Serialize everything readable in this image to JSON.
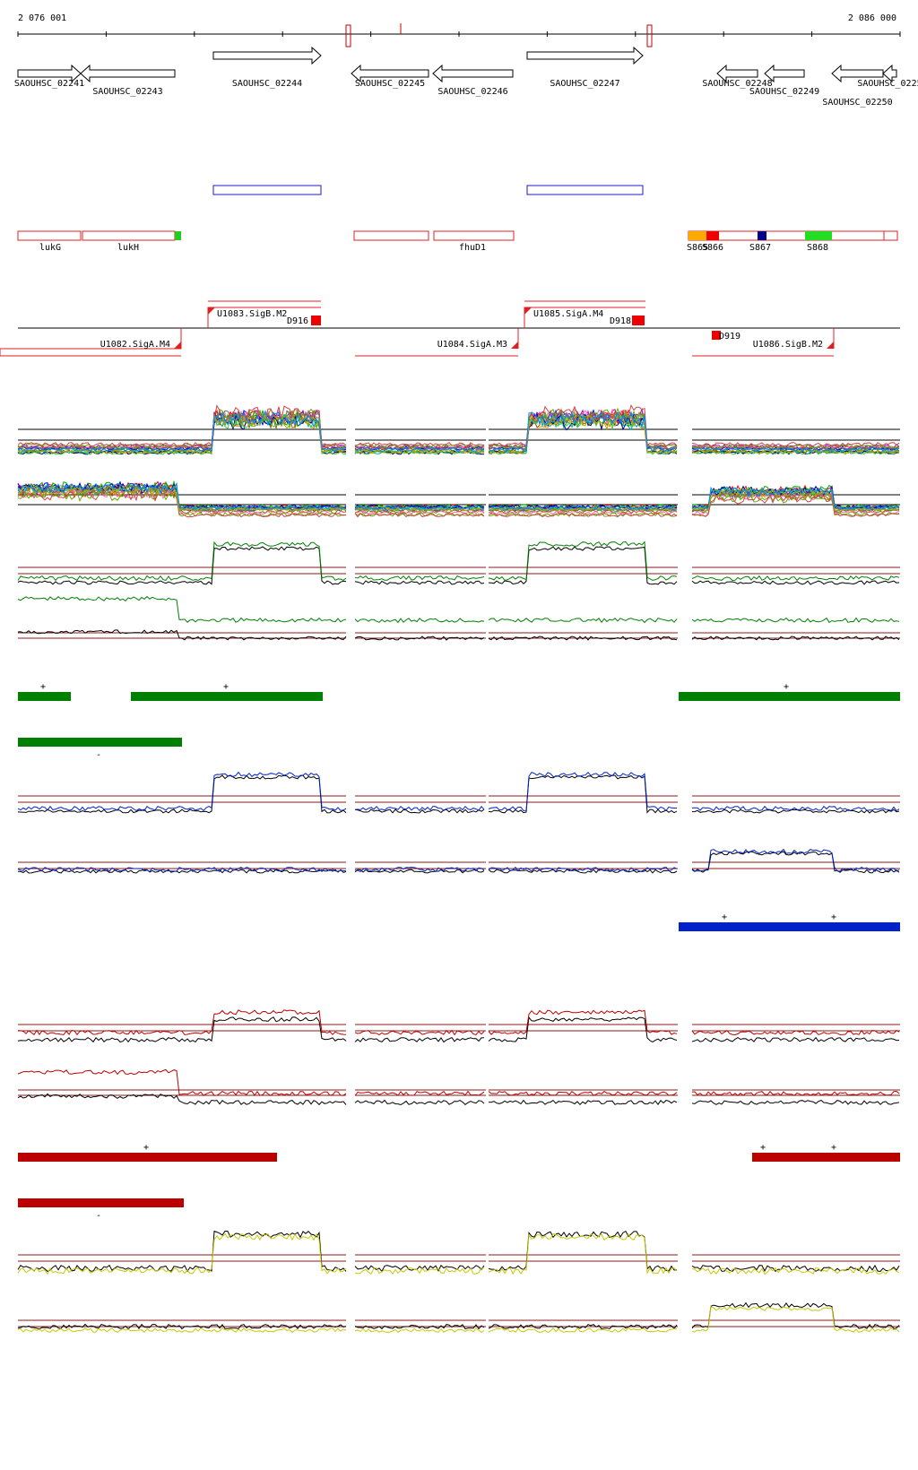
{
  "coordinates": {
    "start": "2 076 001",
    "end": "2 086 000"
  },
  "genes": [
    {
      "id": "SAOUHSC_02241",
      "strand": "+",
      "x0": 20,
      "x1": 90,
      "label_row": 0
    },
    {
      "id": "SAOUHSC_02243",
      "strand": "-",
      "x0": 90,
      "x1": 195,
      "label_row": 1
    },
    {
      "id": "SAOUHSC_02244",
      "strand": "+",
      "x0": 238,
      "x1": 358,
      "label_row": 0
    },
    {
      "id": "SAOUHSC_02245",
      "strand": "-",
      "x0": 392,
      "x1": 478,
      "label_row": 0
    },
    {
      "id": "SAOUHSC_02246",
      "strand": "-",
      "x0": 483,
      "x1": 572,
      "label_row": 1
    },
    {
      "id": "SAOUHSC_02247",
      "strand": "+",
      "x0": 588,
      "x1": 717,
      "label_row": 0
    },
    {
      "id": "SAOUHSC_02248",
      "strand": "-",
      "x0": 800,
      "x1": 845,
      "label_row": 0
    },
    {
      "id": "SAOUHSC_02249",
      "strand": "-",
      "x0": 853,
      "x1": 897,
      "label_row": 1
    },
    {
      "id": "SAOUHSC_02250",
      "strand": "-",
      "x0": 928,
      "x1": 985,
      "label_row": 2
    },
    {
      "id": "SAOUHSC_0225",
      "strand": "-",
      "x0": 985,
      "x1": 1000,
      "label_row": 0
    }
  ],
  "features": [
    {
      "name": "lukG"
    },
    {
      "name": "lukH"
    },
    {
      "name": "fhuD1"
    },
    {
      "name": "S865"
    },
    {
      "name": "S866"
    },
    {
      "name": "S867"
    },
    {
      "name": "S868"
    }
  ],
  "promoters": [
    {
      "name": "U1082.SigA.M4"
    },
    {
      "name": "U1083.SigB.M2"
    },
    {
      "name": "U1084.SigA.M3"
    },
    {
      "name": "U1085.SigA.M4"
    },
    {
      "name": "U1086.SigB.M2"
    }
  ],
  "terminators": [
    {
      "name": "D916"
    },
    {
      "name": "D918"
    },
    {
      "name": "D919"
    }
  ],
  "segment_signs": {
    "plus": "+",
    "minus": "-"
  },
  "colors": {
    "gene_outline": "#000000",
    "feature_outline": "#e02020",
    "blue_box": "#1b1bd0",
    "green_track": "#008000",
    "blue_track": "#0022cc",
    "red_track": "#bb0000",
    "yellow_track": "#c8c800",
    "threshold": "#8b1a1a"
  }
}
